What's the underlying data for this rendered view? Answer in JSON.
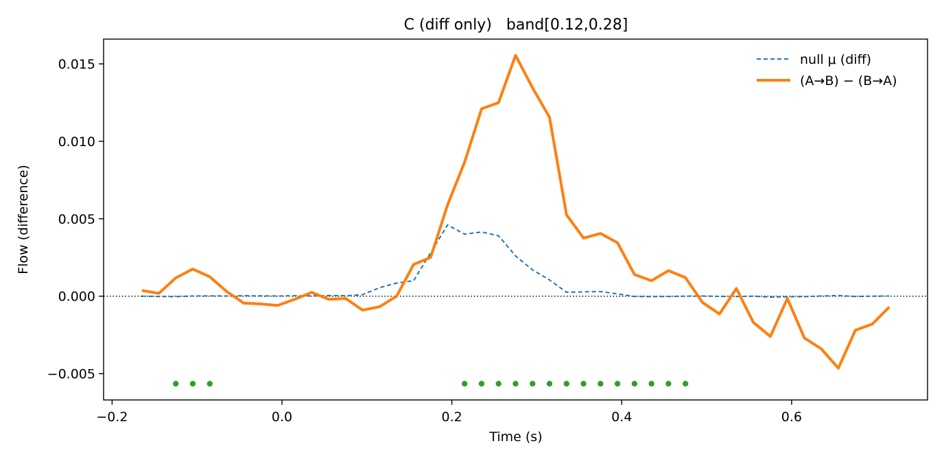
{
  "chart_data": {
    "type": "line",
    "title": "C (diff only)   band[0.12,0.28]",
    "xlabel": "Time (s)",
    "ylabel": "Flow (difference)",
    "xlim": [
      -0.21,
      0.76
    ],
    "ylim": [
      -0.0067,
      0.0166
    ],
    "xticks": [
      -0.2,
      0.0,
      0.2,
      0.4,
      0.6
    ],
    "xtick_labels": [
      "−0.2",
      "0.0",
      "0.2",
      "0.4",
      "0.6"
    ],
    "yticks": [
      -0.005,
      0.0,
      0.005,
      0.01,
      0.015
    ],
    "ytick_labels": [
      "−0.005",
      "0.000",
      "0.005",
      "0.010",
      "0.015"
    ],
    "grid": false,
    "legend_position": "top-right",
    "zero_line": {
      "y": 0,
      "style": "dotted",
      "color": "#000000"
    },
    "x": [
      -0.165,
      -0.145,
      -0.125,
      -0.105,
      -0.085,
      -0.065,
      -0.045,
      -0.025,
      -0.005,
      0.015,
      0.035,
      0.055,
      0.075,
      0.095,
      0.115,
      0.135,
      0.155,
      0.175,
      0.195,
      0.215,
      0.235,
      0.255,
      0.275,
      0.295,
      0.315,
      0.335,
      0.355,
      0.375,
      0.395,
      0.415,
      0.435,
      0.455,
      0.475,
      0.495,
      0.515,
      0.535,
      0.555,
      0.575,
      0.595,
      0.615,
      0.635,
      0.655,
      0.675,
      0.695,
      0.715
    ],
    "series": [
      {
        "name": "null μ (diff)",
        "color": "#1f77b4",
        "style": "dashed",
        "values": [
          0.0,
          -2e-05,
          -3e-05,
          1e-05,
          2e-05,
          1e-05,
          3e-05,
          2e-05,
          1e-05,
          3e-05,
          2e-05,
          4e-05,
          3e-05,
          0.0001,
          0.00055,
          0.00085,
          0.001,
          0.0028,
          0.0046,
          0.004,
          0.00415,
          0.0039,
          0.0026,
          0.0017,
          0.00105,
          0.00025,
          0.00028,
          0.0003,
          0.00015,
          -2e-05,
          -3e-05,
          -2e-05,
          0.0,
          1e-05,
          -1e-05,
          -2e-05,
          0.0,
          -6e-05,
          -4e-05,
          -3e-05,
          1e-05,
          4e-05,
          -2e-05,
          0.0,
          1e-05
        ]
      },
      {
        "name": "(A→B) − (B→A)",
        "color": "#ff7f0e",
        "style": "solid",
        "values": [
          0.00037,
          0.00018,
          0.00118,
          0.00175,
          0.00125,
          0.0003,
          -0.00045,
          -0.0005,
          -0.0006,
          -0.0002,
          0.00025,
          -0.0002,
          -0.00015,
          -0.0009,
          -0.00068,
          0.0,
          0.00205,
          0.0025,
          0.0059,
          0.00865,
          0.0121,
          0.0125,
          0.01555,
          0.01345,
          0.01155,
          0.00525,
          0.00375,
          0.00405,
          0.00345,
          0.0014,
          0.001,
          0.00165,
          0.0012,
          -0.0004,
          -0.00115,
          0.0005,
          -0.0017,
          -0.0026,
          -0.00015,
          -0.0027,
          -0.0034,
          -0.00465,
          -0.0022,
          -0.0018,
          -0.0007
        ]
      }
    ],
    "significance_markers": {
      "color": "#2ca02c",
      "y": -0.00565,
      "x": [
        -0.125,
        -0.105,
        -0.085,
        0.215,
        0.235,
        0.255,
        0.275,
        0.295,
        0.315,
        0.335,
        0.355,
        0.375,
        0.395,
        0.415,
        0.435,
        0.455,
        0.475
      ]
    }
  }
}
